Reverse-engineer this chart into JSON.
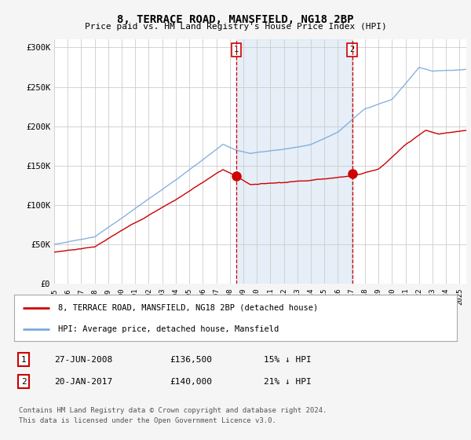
{
  "title": "8, TERRACE ROAD, MANSFIELD, NG18 2BP",
  "subtitle": "Price paid vs. HM Land Registry's House Price Index (HPI)",
  "ylabel_ticks": [
    "£0",
    "£50K",
    "£100K",
    "£150K",
    "£200K",
    "£250K",
    "£300K"
  ],
  "ytick_values": [
    0,
    50000,
    100000,
    150000,
    200000,
    250000,
    300000
  ],
  "ylim": [
    0,
    310000
  ],
  "xlim_start": 1995.0,
  "xlim_end": 2025.5,
  "hpi_color": "#7aaadd",
  "price_color": "#cc0000",
  "marker1_date": 2008.49,
  "marker1_price": 136500,
  "marker2_date": 2017.05,
  "marker2_price": 140000,
  "legend_line1": "8, TERRACE ROAD, MANSFIELD, NG18 2BP (detached house)",
  "legend_line2": "HPI: Average price, detached house, Mansfield",
  "table_row1": [
    "1",
    "27-JUN-2008",
    "£136,500",
    "15% ↓ HPI"
  ],
  "table_row2": [
    "2",
    "20-JAN-2017",
    "£140,000",
    "21% ↓ HPI"
  ],
  "footnote1": "Contains HM Land Registry data © Crown copyright and database right 2024.",
  "footnote2": "This data is licensed under the Open Government Licence v3.0.",
  "bg_color": "#f5f5f5",
  "plot_bg": "#ffffff",
  "grid_color": "#cccccc",
  "shade_color": "#dce8f5"
}
